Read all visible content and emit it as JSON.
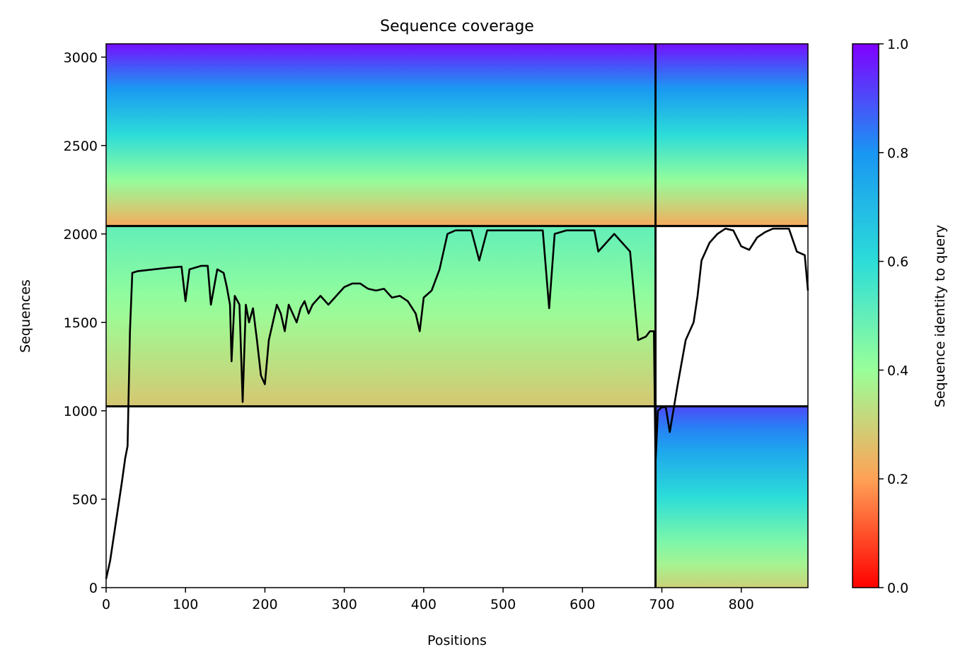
{
  "chart_data": {
    "type": "heatmap",
    "title": "Sequence coverage",
    "xlabel": "Positions",
    "ylabel": "Sequences",
    "xlim": [
      0,
      884
    ],
    "ylim": [
      0,
      3075
    ],
    "x_ticks": [
      0,
      100,
      200,
      300,
      400,
      500,
      600,
      700,
      800
    ],
    "y_ticks": [
      0,
      500,
      1000,
      1500,
      2000,
      2500,
      3000
    ],
    "colorbar": {
      "label": "Sequence identity to query",
      "range": [
        0,
        1
      ],
      "ticks": [
        0.0,
        0.2,
        0.4,
        0.6,
        0.8,
        1.0
      ],
      "tick_labels": [
        "0.0",
        "0.2",
        "0.4",
        "0.6",
        "0.8",
        "1.0"
      ],
      "colormap": "rainbow",
      "stops": [
        "#ff0000",
        "#ffa256",
        "#99ff99",
        "#2cddd8",
        "#1996f3",
        "#8000ff"
      ]
    },
    "blocks": [
      {
        "x0": 0,
        "x1": 692,
        "y0": 2045,
        "y1": 3075,
        "identity_bottom": 0.22,
        "identity_top": 0.98
      },
      {
        "x0": 692,
        "x1": 884,
        "y0": 2045,
        "y1": 3075,
        "identity_bottom": 0.22,
        "identity_top": 0.98
      },
      {
        "x0": 0,
        "x1": 692,
        "y0": 1025,
        "y1": 2045,
        "identity_bottom": 0.28,
        "identity_top": 0.5
      },
      {
        "x0": 692,
        "x1": 884,
        "y0": 0,
        "y1": 1025,
        "identity_bottom": 0.3,
        "identity_top": 0.9
      }
    ],
    "separators": {
      "vertical_x": [
        692
      ],
      "horizontal_y": [
        1025,
        2045
      ]
    },
    "coverage_line": {
      "color": "#000000",
      "x": [
        0,
        5,
        10,
        15,
        20,
        24,
        27,
        30,
        33,
        40,
        60,
        80,
        95,
        100,
        105,
        120,
        128,
        132,
        140,
        148,
        152,
        156,
        158,
        162,
        168,
        172,
        176,
        180,
        185,
        190,
        195,
        200,
        205,
        210,
        215,
        220,
        225,
        230,
        235,
        240,
        245,
        250,
        255,
        260,
        270,
        280,
        290,
        300,
        310,
        320,
        330,
        340,
        350,
        360,
        370,
        380,
        390,
        395,
        400,
        410,
        420,
        430,
        440,
        460,
        470,
        480,
        500,
        520,
        550,
        558,
        565,
        580,
        600,
        615,
        620,
        640,
        660,
        670,
        680,
        685,
        690,
        692,
        695,
        700,
        705,
        710,
        720,
        730,
        740,
        745,
        750,
        760,
        770,
        780,
        790,
        800,
        810,
        820,
        830,
        840,
        860,
        870,
        880,
        884
      ],
      "y": [
        50,
        150,
        300,
        450,
        600,
        730,
        800,
        1450,
        1780,
        1790,
        1800,
        1810,
        1815,
        1620,
        1800,
        1820,
        1820,
        1600,
        1800,
        1780,
        1700,
        1600,
        1280,
        1650,
        1600,
        1050,
        1600,
        1500,
        1580,
        1400,
        1200,
        1150,
        1400,
        1500,
        1600,
        1550,
        1450,
        1600,
        1550,
        1500,
        1580,
        1620,
        1550,
        1600,
        1650,
        1600,
        1650,
        1700,
        1720,
        1720,
        1690,
        1680,
        1690,
        1640,
        1650,
        1620,
        1550,
        1450,
        1640,
        1680,
        1800,
        2000,
        2020,
        2020,
        1850,
        2020,
        2020,
        2020,
        2020,
        1580,
        2000,
        2020,
        2020,
        2020,
        1900,
        2000,
        1900,
        1400,
        1420,
        1450,
        1450,
        700,
        1000,
        1020,
        1020,
        880,
        1150,
        1400,
        1500,
        1650,
        1850,
        1950,
        2000,
        2030,
        2020,
        1930,
        1910,
        1980,
        2010,
        2030,
        2030,
        1900,
        1880,
        1680
      ]
    }
  }
}
